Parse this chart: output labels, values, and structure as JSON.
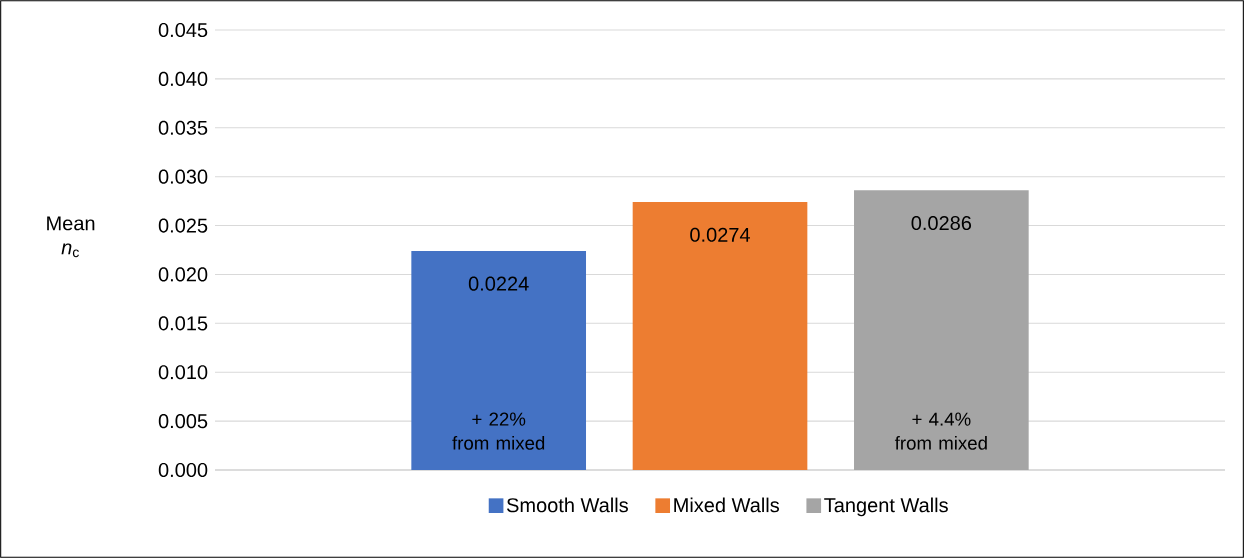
{
  "chart_data": {
    "type": "bar",
    "ylabel": "Mean *n*$_{c}$",
    "categories": [
      null
    ],
    "series": [
      {
        "name": "Smooth Walls",
        "color": "#4472c4",
        "values": [
          0.0224
        ]
      },
      {
        "name": "Mixed Walls",
        "color": "#ed7d31",
        "values": [
          0.0274
        ]
      },
      {
        "name": "Tangent Walls",
        "color": "#a5a5a5",
        "values": [
          0.0286
        ]
      }
    ],
    "ylim": [
      0,
      0.045
    ],
    "yticks": [
      {
        "value": 0,
        "label": "0.000"
      },
      {
        "value": 0.005,
        "label": "0.005"
      },
      {
        "value": 0.01,
        "label": "0.010"
      },
      {
        "value": 0.015,
        "label": "0.015"
      },
      {
        "value": 0.02,
        "label": "0.020"
      },
      {
        "value": 0.025,
        "label": "0.025"
      },
      {
        "value": 0.03,
        "label": "0.030"
      },
      {
        "value": 0.035,
        "label": "0.035"
      },
      {
        "value": 0.04,
        "label": "0.040"
      },
      {
        "value": 0.045,
        "label": "0.045"
      }
    ],
    "grid": "y",
    "data_labels": true,
    "legend": "bottom",
    "annotations": [
      "+ 22% from mixed",
      "+ 4.4% from mixed"
    ]
  }
}
